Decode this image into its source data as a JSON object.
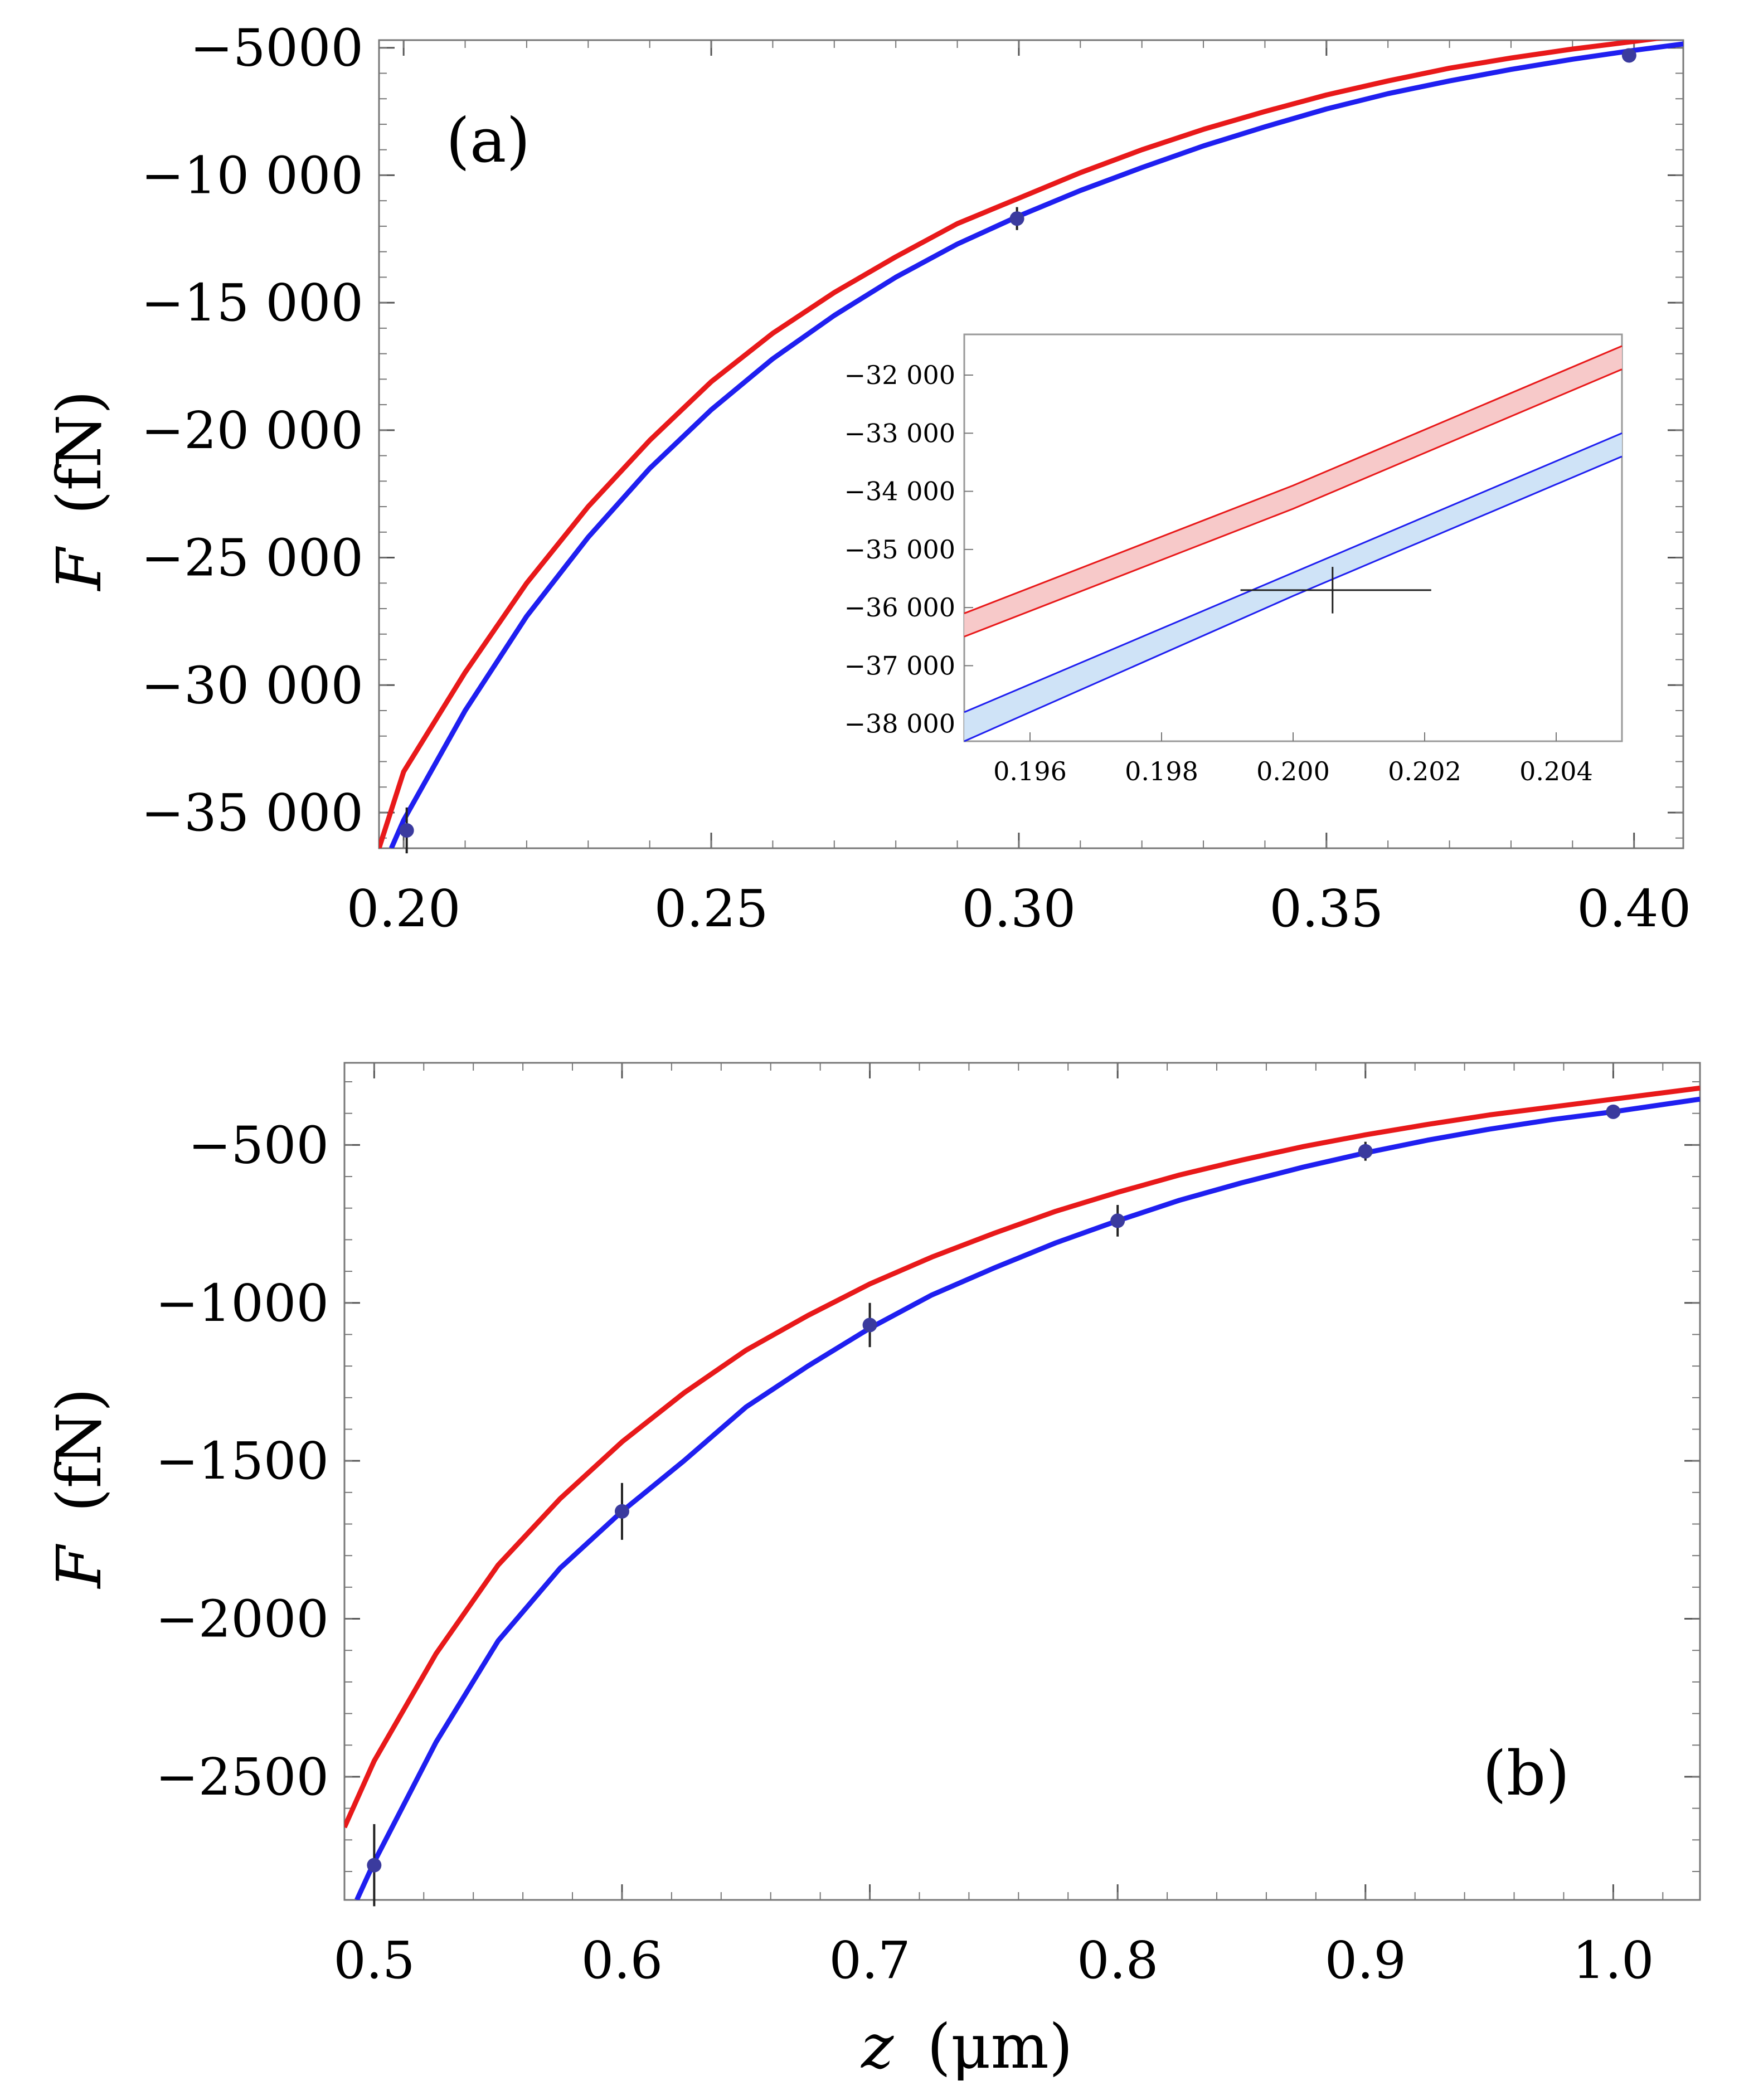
{
  "figure": {
    "ylabel_symbol": "F",
    "ylabel_unit": "(fN)",
    "xlabel_symbol": "z",
    "xlabel_unit": "(μm)"
  },
  "chart_data": [
    {
      "panel": "(a)",
      "type": "line",
      "xlim": [
        0.196,
        0.408
      ],
      "ylim": [
        -36400,
        -4700
      ],
      "xticks": [
        0.2,
        0.25,
        0.3,
        0.35,
        0.4
      ],
      "xtick_labels": [
        "0.20",
        "0.25",
        "0.30",
        "0.35",
        "0.40"
      ],
      "yticks": [
        -5000,
        -10000,
        -15000,
        -20000,
        -25000,
        -30000,
        -35000
      ],
      "ytick_labels": [
        "−5000",
        "−10 000",
        "−15 000",
        "−20 000",
        "−25 000",
        "−30 000",
        "−35 000"
      ],
      "series": [
        {
          "name": "upper",
          "color": "#e8191a",
          "x": [
            0.196,
            0.2,
            0.21,
            0.22,
            0.23,
            0.24,
            0.25,
            0.26,
            0.27,
            0.28,
            0.29,
            0.3,
            0.31,
            0.32,
            0.33,
            0.34,
            0.35,
            0.36,
            0.37,
            0.38,
            0.39,
            0.4,
            0.408
          ],
          "y": [
            -36400,
            -33400,
            -29500,
            -26000,
            -23000,
            -20400,
            -18100,
            -16200,
            -14600,
            -13200,
            -11900,
            -10900,
            -9900,
            -9000,
            -8200,
            -7500,
            -6850,
            -6300,
            -5800,
            -5400,
            -5050,
            -4750,
            -4500
          ]
        },
        {
          "name": "lower",
          "color": "#1f1ff0",
          "x": [
            0.198,
            0.2,
            0.21,
            0.22,
            0.23,
            0.24,
            0.25,
            0.26,
            0.27,
            0.28,
            0.29,
            0.3,
            0.31,
            0.32,
            0.33,
            0.34,
            0.35,
            0.36,
            0.37,
            0.38,
            0.39,
            0.4,
            0.408
          ],
          "y": [
            -36400,
            -35300,
            -31000,
            -27300,
            -24200,
            -21500,
            -19200,
            -17200,
            -15500,
            -14000,
            -12700,
            -11600,
            -10600,
            -9700,
            -8850,
            -8100,
            -7400,
            -6800,
            -6300,
            -5850,
            -5450,
            -5100,
            -4850
          ]
        }
      ],
      "points": {
        "color": "#3b3b9e",
        "x": [
          0.2005,
          0.2997,
          0.3992
        ],
        "y": [
          -35700,
          -11700,
          -5300
        ],
        "yerr": [
          900,
          450,
          150
        ]
      },
      "inset": {
        "xlim": [
          0.195,
          0.205
        ],
        "ylim": [
          -38300,
          -31300
        ],
        "xticks": [
          0.196,
          0.198,
          0.2,
          0.202,
          0.204
        ],
        "xtick_labels": [
          "0.196",
          "0.198",
          "0.200",
          "0.202",
          "0.204"
        ],
        "yticks": [
          -32000,
          -33000,
          -34000,
          -35000,
          -36000,
          -37000,
          -38000
        ],
        "ytick_labels": [
          "−32 000",
          "−33 000",
          "−34 000",
          "−35 000",
          "−36 000",
          "−37 000",
          "−38 000"
        ],
        "bands": [
          {
            "name": "red band",
            "stroke": "#e8191a",
            "fill": "#f7c9c9",
            "x": [
              0.195,
              0.2,
              0.205
            ],
            "y_top": [
              -36100,
              -33900,
              -31500
            ],
            "y_bottom": [
              -36500,
              -34300,
              -31900
            ]
          },
          {
            "name": "blue band",
            "stroke": "#1f1ff0",
            "fill": "#cfe3f7",
            "x": [
              0.195,
              0.2,
              0.205
            ],
            "y_top": [
              -37800,
              -35400,
              -33000
            ],
            "y_bottom": [
              -38300,
              -35800,
              -33400
            ]
          }
        ],
        "point": {
          "x": 0.2006,
          "y": -35700,
          "xerr": [
            0.0014,
            0.0015
          ],
          "yerr": 400
        }
      }
    },
    {
      "panel": "(b)",
      "type": "line",
      "xlim": [
        0.488,
        1.035
      ],
      "ylim": [
        -2890,
        -240
      ],
      "xticks": [
        0.5,
        0.6,
        0.7,
        0.8,
        0.9,
        1.0
      ],
      "xtick_labels": [
        "0.5",
        "0.6",
        "0.7",
        "0.8",
        "0.9",
        "1.0"
      ],
      "yticks": [
        -500,
        -1000,
        -1500,
        -2000,
        -2500
      ],
      "ytick_labels": [
        "−500",
        "−1000",
        "−1500",
        "−2000",
        "−2500"
      ],
      "series": [
        {
          "name": "upper",
          "color": "#e8191a",
          "x": [
            0.488,
            0.5,
            0.525,
            0.55,
            0.575,
            0.6,
            0.625,
            0.65,
            0.675,
            0.7,
            0.725,
            0.75,
            0.775,
            0.8,
            0.825,
            0.85,
            0.875,
            0.9,
            0.925,
            0.95,
            0.975,
            1.0,
            1.035
          ],
          "y": [
            -2660,
            -2450,
            -2110,
            -1830,
            -1620,
            -1440,
            -1285,
            -1150,
            -1040,
            -940,
            -855,
            -780,
            -710,
            -650,
            -595,
            -548,
            -505,
            -468,
            -435,
            -405,
            -380,
            -355,
            -320
          ]
        },
        {
          "name": "lower",
          "color": "#1f1ff0",
          "x": [
            0.493,
            0.5,
            0.525,
            0.55,
            0.575,
            0.6,
            0.625,
            0.65,
            0.675,
            0.7,
            0.725,
            0.75,
            0.775,
            0.8,
            0.825,
            0.85,
            0.875,
            0.9,
            0.925,
            0.95,
            0.975,
            1.0,
            1.035
          ],
          "y": [
            -2890,
            -2770,
            -2390,
            -2070,
            -1840,
            -1660,
            -1500,
            -1330,
            -1200,
            -1080,
            -975,
            -890,
            -810,
            -740,
            -675,
            -620,
            -570,
            -525,
            -485,
            -450,
            -420,
            -395,
            -355
          ]
        }
      ],
      "points": {
        "color": "#3b3b9e",
        "x": [
          0.5,
          0.6,
          0.7,
          0.8,
          0.9,
          1.0
        ],
        "y": [
          -2780,
          -1660,
          -1070,
          -740,
          -520,
          -395
        ],
        "yerr": [
          130,
          90,
          70,
          50,
          30,
          20
        ]
      }
    }
  ]
}
